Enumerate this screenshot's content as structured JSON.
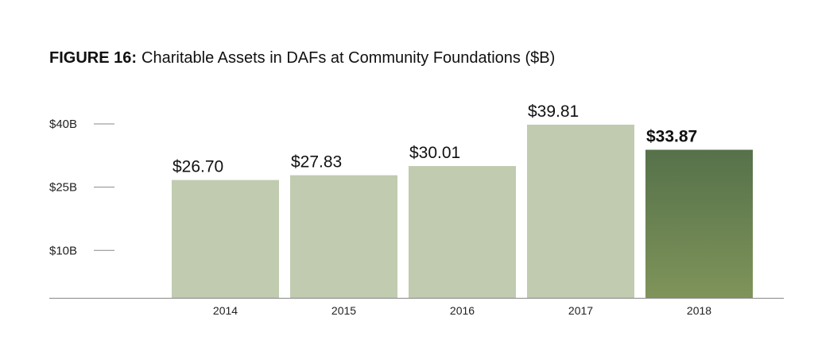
{
  "colors": {
    "bar": "#c0cbb0",
    "highlight_top": "#56714a",
    "highlight_bottom": "#7f945a",
    "axis": "#888888",
    "text": "#111111"
  },
  "chart_data": {
    "type": "bar",
    "title_label": "FIGURE 16:",
    "title": "Charitable Assets in DAFs at Community Foundations ($B)",
    "xlabel": "",
    "ylabel": "",
    "categories": [
      "2014",
      "2015",
      "2016",
      "2017",
      "2018"
    ],
    "values": [
      26.7,
      27.83,
      30.01,
      39.81,
      33.87
    ],
    "value_labels": [
      "$26.70",
      "$27.83",
      "$30.01",
      "$39.81",
      "$33.87"
    ],
    "highlight_index": 4,
    "y_ticks": [
      40,
      25,
      10
    ],
    "y_tick_labels": [
      "$40B",
      "$25B",
      "$10B"
    ],
    "ylim": [
      -1.24,
      40
    ],
    "grid": false,
    "legend": "none"
  }
}
